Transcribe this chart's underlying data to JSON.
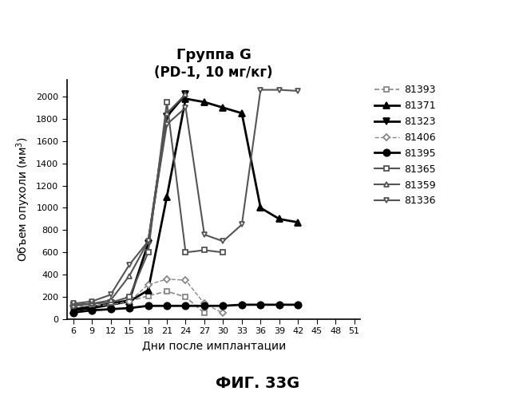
{
  "title_line1": "Группа G",
  "title_line2": "(PD-1, 10 мг/кг)",
  "xlabel": "Дни после имплантации",
  "ylabel": "Объем опухоли (мм³)",
  "footer": "ФИГ. 33G",
  "xticks": [
    6,
    9,
    12,
    15,
    18,
    21,
    24,
    27,
    30,
    33,
    36,
    39,
    42,
    45,
    48,
    51
  ],
  "yticks": [
    0,
    200,
    400,
    600,
    800,
    1000,
    1200,
    1400,
    1600,
    1800,
    2000
  ],
  "ylim": [
    0,
    2150
  ],
  "xlim": [
    5,
    52
  ],
  "series": [
    {
      "label": "81393",
      "marker": "s",
      "linestyle": "--",
      "color": "#888888",
      "markersize": 5,
      "linewidth": 1.2,
      "filled": false,
      "x": [
        6,
        9,
        12,
        15,
        18,
        21,
        24,
        27
      ],
      "y": [
        100,
        120,
        130,
        160,
        210,
        250,
        200,
        55
      ]
    },
    {
      "label": "81371",
      "marker": "^",
      "linestyle": "-",
      "color": "#000000",
      "markersize": 6,
      "linewidth": 2,
      "filled": true,
      "x": [
        6,
        9,
        12,
        15,
        18,
        21,
        24,
        27,
        30,
        33,
        36,
        39,
        42
      ],
      "y": [
        80,
        100,
        130,
        160,
        260,
        1100,
        1980,
        1950,
        1900,
        1850,
        1000,
        900,
        870
      ]
    },
    {
      "label": "81323",
      "marker": "v",
      "linestyle": "-",
      "color": "#000000",
      "markersize": 6,
      "linewidth": 2,
      "filled": true,
      "x": [
        6,
        9,
        12,
        15,
        18,
        21,
        24
      ],
      "y": [
        90,
        110,
        140,
        170,
        680,
        1820,
        2020
      ]
    },
    {
      "label": "81406",
      "marker": "D",
      "linestyle": "--",
      "color": "#888888",
      "markersize": 4,
      "linewidth": 1.0,
      "filled": false,
      "x": [
        6,
        9,
        12,
        15,
        18,
        21,
        24,
        27,
        30
      ],
      "y": [
        120,
        120,
        130,
        160,
        310,
        360,
        350,
        140,
        55
      ]
    },
    {
      "label": "81395",
      "marker": "o",
      "linestyle": "-",
      "color": "#000000",
      "markersize": 6,
      "linewidth": 2,
      "filled": true,
      "x": [
        6,
        9,
        12,
        15,
        18,
        21,
        24,
        27,
        30,
        33,
        36,
        39,
        42
      ],
      "y": [
        60,
        80,
        90,
        100,
        120,
        120,
        120,
        120,
        120,
        130,
        130,
        130,
        130
      ]
    },
    {
      "label": "81365",
      "marker": "s",
      "linestyle": "-",
      "color": "#555555",
      "markersize": 5,
      "linewidth": 1.5,
      "filled": false,
      "x": [
        6,
        9,
        12,
        15,
        18,
        21,
        24,
        27,
        30
      ],
      "y": [
        130,
        140,
        150,
        200,
        600,
        1950,
        600,
        620,
        600
      ]
    },
    {
      "label": "81359",
      "marker": "^",
      "linestyle": "-",
      "color": "#555555",
      "markersize": 5,
      "linewidth": 1.5,
      "filled": false,
      "x": [
        6,
        9,
        12,
        15,
        18,
        21,
        24
      ],
      "y": [
        120,
        140,
        170,
        390,
        700,
        1850,
        2020
      ]
    },
    {
      "label": "81336",
      "marker": "v",
      "linestyle": "-",
      "color": "#555555",
      "markersize": 5,
      "linewidth": 1.5,
      "filled": false,
      "x": [
        6,
        9,
        12,
        15,
        18,
        21,
        24,
        27,
        30,
        33,
        36,
        39,
        42
      ],
      "y": [
        140,
        160,
        220,
        490,
        700,
        1750,
        1900,
        760,
        700,
        850,
        2060,
        2060,
        2050
      ]
    }
  ]
}
